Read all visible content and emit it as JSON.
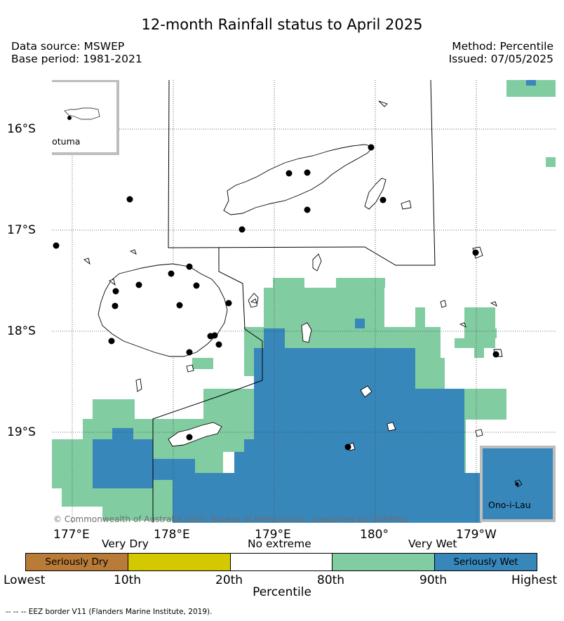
{
  "header": {
    "title": "12-month Rainfall status to April 2025",
    "data_source": "Data source: MSWEP",
    "base_period": "Base period: 1981-2021",
    "method": "Method: Percentile",
    "issued": "Issued: 07/05/2025"
  },
  "map": {
    "lat_labels": [
      "16°S",
      "17°S",
      "18°S",
      "19°S"
    ],
    "lon_labels": [
      "177°E",
      "178°E",
      "179°E",
      "180°",
      "179°W"
    ],
    "inset_rotuma": "Rotuma",
    "inset_ono": "Ono-i-Lau",
    "copyright": "© Commonwealth of Australia 2025, Bureau of Meteorology, supported by COSPPac"
  },
  "legend": {
    "category_labels": [
      "Very Dry",
      "No extreme",
      "Very Wet"
    ],
    "segments": [
      {
        "label": "Seriously Dry",
        "color": "#b87b38"
      },
      {
        "label": "",
        "color": "#d4c800"
      },
      {
        "label": "",
        "color": "#ffffff"
      },
      {
        "label": "",
        "color": "#82cca2"
      },
      {
        "label": "Seriously Wet",
        "color": "#3787bb"
      }
    ],
    "tick_labels": [
      "Lowest",
      "10th",
      "20th",
      "80th",
      "90th",
      "Highest"
    ],
    "axis_label": "Percentile"
  },
  "footnote": "--  --  -- EEZ border V11 (Flanders Marine Institute, 2019).",
  "colors": {
    "very_wet": "#82cca2",
    "seriously_wet": "#3787bb",
    "land_outline": "#000000",
    "inset_border": "#bdbdbd"
  }
}
